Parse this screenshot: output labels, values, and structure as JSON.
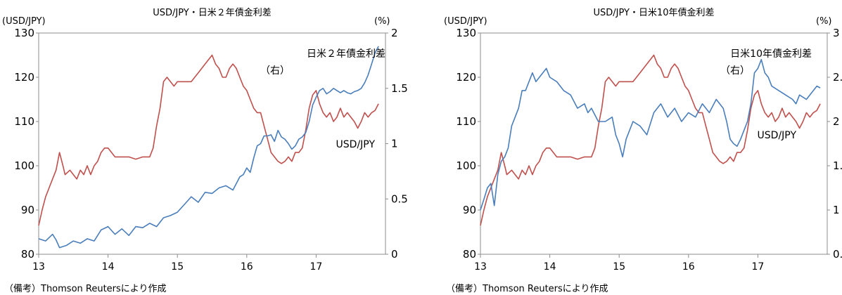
{
  "chart_data": [
    {
      "type": "line",
      "title": "USD/JPY・日米２年債金利差",
      "left_axis_unit": "(USD/JPY)",
      "right_axis_unit": "(%)",
      "x_ticks": [
        "13",
        "14",
        "15",
        "16",
        "17"
      ],
      "x_range": [
        13.0,
        18.0
      ],
      "ylim_left": [
        80,
        130
      ],
      "y_ticks_left": [
        "80",
        "90",
        "100",
        "110",
        "120",
        "130"
      ],
      "ylim_right": [
        0,
        2
      ],
      "y_ticks_right": [
        "0",
        "0.5",
        "1",
        "1.5",
        "2"
      ],
      "grid": false,
      "series": [
        {
          "name": "USD/JPY",
          "axis": "left",
          "color": "#c0504d",
          "x": [
            13.0,
            13.05,
            13.1,
            13.15,
            13.2,
            13.25,
            13.3,
            13.35,
            13.38,
            13.45,
            13.5,
            13.55,
            13.6,
            13.65,
            13.7,
            13.75,
            13.8,
            13.85,
            13.9,
            13.95,
            14.0,
            14.1,
            14.2,
            14.3,
            14.4,
            14.5,
            14.6,
            14.65,
            14.7,
            14.75,
            14.8,
            14.85,
            14.9,
            14.95,
            15.0,
            15.1,
            15.2,
            15.3,
            15.4,
            15.45,
            15.5,
            15.55,
            15.6,
            15.65,
            15.7,
            15.75,
            15.8,
            15.85,
            15.9,
            15.95,
            16.0,
            16.05,
            16.1,
            16.15,
            16.2,
            16.25,
            16.3,
            16.35,
            16.4,
            16.45,
            16.5,
            16.55,
            16.6,
            16.65,
            16.7,
            16.75,
            16.8,
            16.85,
            16.9,
            16.95,
            17.0,
            17.05,
            17.1,
            17.15,
            17.2,
            17.25,
            17.3,
            17.35,
            17.4,
            17.45,
            17.5,
            17.55,
            17.6,
            17.65,
            17.7,
            17.75,
            17.8,
            17.85,
            17.9
          ],
          "values": [
            86.5,
            90,
            93,
            95,
            97,
            99,
            103,
            100,
            98,
            99,
            98,
            97,
            99,
            98,
            100,
            98,
            100,
            101,
            103,
            104,
            104,
            102,
            102,
            102,
            101.5,
            102,
            102,
            104,
            109,
            113,
            119,
            120,
            119,
            118,
            119,
            119,
            119,
            121,
            123,
            124,
            125,
            123,
            122,
            120,
            120,
            122,
            123,
            122,
            120,
            118,
            117,
            115,
            113,
            112,
            112,
            109,
            106,
            103,
            102,
            101,
            100.5,
            101,
            102,
            101,
            103,
            103,
            104,
            108,
            113,
            116,
            117,
            114,
            112,
            111,
            112,
            110,
            111,
            113,
            111,
            112,
            111,
            110,
            108.5,
            110,
            112,
            111,
            112,
            112.5,
            114
          ]
        },
        {
          "name": "日米２年債金利差（右）",
          "axis": "right",
          "color": "#4a7ebb",
          "x": [
            13.0,
            13.1,
            13.2,
            13.25,
            13.3,
            13.4,
            13.5,
            13.6,
            13.7,
            13.8,
            13.9,
            14.0,
            14.1,
            14.2,
            14.3,
            14.4,
            14.5,
            14.6,
            14.7,
            14.8,
            14.9,
            15.0,
            15.1,
            15.2,
            15.3,
            15.4,
            15.5,
            15.6,
            15.7,
            15.8,
            15.85,
            15.9,
            15.95,
            16.0,
            16.05,
            16.1,
            16.15,
            16.2,
            16.25,
            16.3,
            16.35,
            16.4,
            16.45,
            16.5,
            16.55,
            16.6,
            16.65,
            16.7,
            16.75,
            16.8,
            16.85,
            16.9,
            16.95,
            17.0,
            17.05,
            17.1,
            17.15,
            17.2,
            17.25,
            17.3,
            17.35,
            17.4,
            17.45,
            17.5,
            17.55,
            17.6,
            17.65,
            17.7,
            17.75,
            17.8,
            17.85,
            17.9
          ],
          "values": [
            0.14,
            0.12,
            0.18,
            0.13,
            0.06,
            0.08,
            0.12,
            0.1,
            0.14,
            0.12,
            0.22,
            0.25,
            0.18,
            0.23,
            0.17,
            0.25,
            0.24,
            0.28,
            0.25,
            0.33,
            0.35,
            0.38,
            0.45,
            0.52,
            0.47,
            0.56,
            0.55,
            0.6,
            0.62,
            0.58,
            0.64,
            0.7,
            0.72,
            0.78,
            0.74,
            0.87,
            0.98,
            1.0,
            1.07,
            1.07,
            1.08,
            1.02,
            1.12,
            1.06,
            1.04,
            1.0,
            0.95,
            0.98,
            1.04,
            1.06,
            1.1,
            1.2,
            1.35,
            1.42,
            1.48,
            1.5,
            1.45,
            1.47,
            1.5,
            1.48,
            1.46,
            1.48,
            1.46,
            1.45,
            1.47,
            1.48,
            1.5,
            1.55,
            1.62,
            1.72,
            1.82,
            1.88
          ]
        }
      ],
      "annotations": [
        {
          "text": "日米２年債金利差",
          "ref": "right-series"
        },
        {
          "text": "（右）",
          "ref": "right-series"
        },
        {
          "text": "USD/JPY",
          "ref": "left-series"
        }
      ],
      "note": "（備考）Thomson Reutersにより作成"
    },
    {
      "type": "line",
      "title": "USD/JPY・日米10年債金利差",
      "left_axis_unit": "(USD/JPY)",
      "right_axis_unit": "(%)",
      "x_ticks": [
        "13",
        "14",
        "15",
        "16",
        "17"
      ],
      "x_range": [
        13.0,
        18.0
      ],
      "ylim_left": [
        80,
        130
      ],
      "y_ticks_left": [
        "80",
        "90",
        "100",
        "110",
        "120",
        "130"
      ],
      "ylim_right": [
        0.5,
        3
      ],
      "y_ticks_right": [
        "0.5",
        "1",
        "1.5",
        "2",
        "2.5",
        "3"
      ],
      "grid": false,
      "series": [
        {
          "name": "USD/JPY",
          "axis": "left",
          "color": "#c0504d",
          "x": [
            13.0,
            13.05,
            13.1,
            13.15,
            13.2,
            13.25,
            13.3,
            13.35,
            13.38,
            13.45,
            13.5,
            13.55,
            13.6,
            13.65,
            13.7,
            13.75,
            13.8,
            13.85,
            13.9,
            13.95,
            14.0,
            14.1,
            14.2,
            14.3,
            14.4,
            14.5,
            14.6,
            14.65,
            14.7,
            14.75,
            14.8,
            14.85,
            14.9,
            14.95,
            15.0,
            15.1,
            15.2,
            15.3,
            15.4,
            15.45,
            15.5,
            15.55,
            15.6,
            15.65,
            15.7,
            15.75,
            15.8,
            15.85,
            15.9,
            15.95,
            16.0,
            16.05,
            16.1,
            16.15,
            16.2,
            16.25,
            16.3,
            16.35,
            16.4,
            16.45,
            16.5,
            16.55,
            16.6,
            16.65,
            16.7,
            16.75,
            16.8,
            16.85,
            16.9,
            16.95,
            17.0,
            17.05,
            17.1,
            17.15,
            17.2,
            17.25,
            17.3,
            17.35,
            17.4,
            17.45,
            17.5,
            17.55,
            17.6,
            17.65,
            17.7,
            17.75,
            17.8,
            17.85,
            17.9
          ],
          "values": [
            86.5,
            90,
            93,
            95,
            97,
            99,
            103,
            100,
            98,
            99,
            98,
            97,
            99,
            98,
            100,
            98,
            100,
            101,
            103,
            104,
            104,
            102,
            102,
            102,
            101.5,
            102,
            102,
            104,
            109,
            113,
            119,
            120,
            119,
            118,
            119,
            119,
            119,
            121,
            123,
            124,
            125,
            123,
            122,
            120,
            120,
            122,
            123,
            122,
            120,
            118,
            117,
            115,
            113,
            112,
            112,
            109,
            106,
            103,
            102,
            101,
            100.5,
            101,
            102,
            101,
            103,
            103,
            104,
            108,
            113,
            116,
            117,
            114,
            112,
            111,
            112,
            110,
            111,
            113,
            111,
            112,
            111,
            110,
            108.5,
            110,
            112,
            111,
            112,
            112.5,
            114
          ]
        },
        {
          "name": "日米10年債金利差（右）",
          "axis": "right",
          "color": "#4a7ebb",
          "x": [
            13.0,
            13.05,
            13.1,
            13.15,
            13.2,
            13.25,
            13.3,
            13.35,
            13.4,
            13.45,
            13.5,
            13.55,
            13.6,
            13.65,
            13.7,
            13.75,
            13.8,
            13.85,
            13.9,
            13.95,
            14.0,
            14.1,
            14.2,
            14.3,
            14.4,
            14.5,
            14.55,
            14.6,
            14.7,
            14.8,
            14.9,
            14.95,
            15.0,
            15.05,
            15.1,
            15.2,
            15.3,
            15.4,
            15.5,
            15.6,
            15.7,
            15.8,
            15.9,
            16.0,
            16.1,
            16.2,
            16.3,
            16.4,
            16.5,
            16.55,
            16.6,
            16.65,
            16.7,
            16.75,
            16.8,
            16.85,
            16.9,
            16.95,
            17.0,
            17.05,
            17.1,
            17.15,
            17.2,
            17.3,
            17.4,
            17.5,
            17.55,
            17.6,
            17.7,
            17.75,
            17.8,
            17.85,
            17.9
          ],
          "values": [
            1.0,
            1.12,
            1.25,
            1.3,
            1.05,
            1.4,
            1.55,
            1.6,
            1.7,
            1.95,
            2.05,
            2.15,
            2.35,
            2.35,
            2.45,
            2.55,
            2.45,
            2.5,
            2.55,
            2.6,
            2.5,
            2.45,
            2.35,
            2.3,
            2.15,
            2.2,
            2.1,
            2.15,
            2.0,
            2.0,
            2.05,
            1.85,
            1.75,
            1.6,
            1.8,
            2.0,
            1.95,
            1.85,
            2.1,
            2.2,
            2.05,
            2.15,
            2.0,
            2.1,
            2.05,
            2.2,
            2.1,
            2.25,
            2.15,
            2.0,
            1.8,
            1.75,
            1.72,
            1.8,
            1.9,
            2.0,
            2.2,
            2.55,
            2.6,
            2.7,
            2.55,
            2.5,
            2.4,
            2.35,
            2.3,
            2.25,
            2.2,
            2.3,
            2.25,
            2.3,
            2.35,
            2.4,
            2.38
          ]
        }
      ],
      "annotations": [
        {
          "text": "日米10年債金利差",
          "ref": "right-series"
        },
        {
          "text": "（右）",
          "ref": "right-series"
        },
        {
          "text": "USD/JPY",
          "ref": "left-series"
        }
      ],
      "note": "（備考）Thomson Reutersにより作成"
    }
  ]
}
